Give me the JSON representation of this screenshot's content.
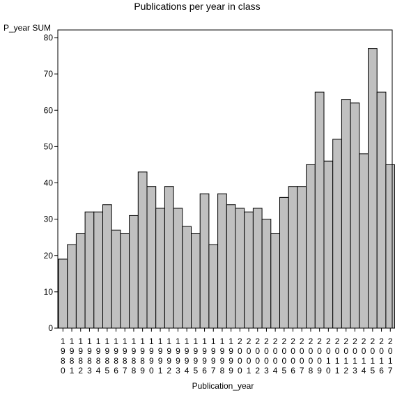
{
  "chart_data": {
    "type": "bar",
    "title": "Publications per year in class",
    "ylabel": "P_year SUM",
    "xlabel": "Publication_year",
    "ylim": [
      0,
      80
    ],
    "yticks": [
      0,
      10,
      20,
      30,
      40,
      50,
      60,
      70,
      80
    ],
    "categories": [
      "1980",
      "1981",
      "1982",
      "1983",
      "1984",
      "1985",
      "1986",
      "1987",
      "1988",
      "1989",
      "1990",
      "1991",
      "1992",
      "1993",
      "1994",
      "1995",
      "1996",
      "1997",
      "1998",
      "1999",
      "2000",
      "2001",
      "2002",
      "2003",
      "2004",
      "2005",
      "2006",
      "2007",
      "2008",
      "2009",
      "2010",
      "2011",
      "2012",
      "2013",
      "2014",
      "2015",
      "2016",
      "2017"
    ],
    "values": [
      19,
      23,
      26,
      32,
      32,
      34,
      27,
      26,
      31,
      43,
      39,
      33,
      39,
      33,
      28,
      26,
      37,
      23,
      37,
      34,
      33,
      32,
      33,
      30,
      26,
      36,
      39,
      39,
      45,
      65,
      46,
      52,
      63,
      62,
      48,
      77,
      65,
      45
    ],
    "bar_color": "#c0c0c0",
    "grid": false,
    "legend": "none"
  }
}
